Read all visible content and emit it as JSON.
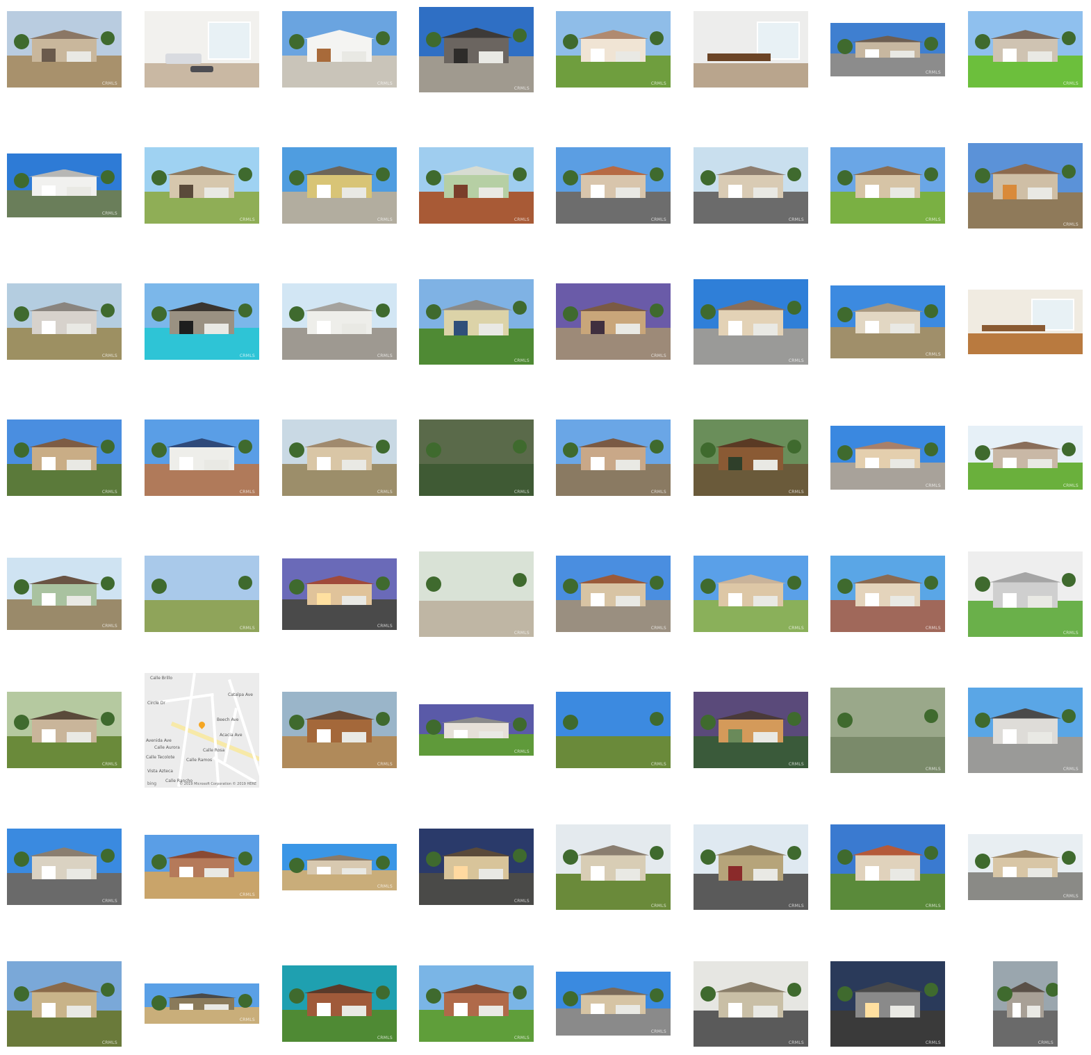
{
  "gallery": {
    "columns": 8,
    "rows": 8,
    "watermark": "CRMLS",
    "photos": [
      {
        "kind": "house",
        "sky": "#b9cce0",
        "ground": "#a8916c",
        "wall": "#c9b79c",
        "roof": "#8b7765",
        "trim": "#6a5a4c"
      },
      {
        "kind": "living",
        "wall": "#f2f1ee",
        "floor": "#c9b8a3",
        "accent": "#4d4d52"
      },
      {
        "kind": "house",
        "sky": "#6aa4e0",
        "ground": "#c9c4b9",
        "wall": "#f4f4f2",
        "roof": "#f4f4f2",
        "trim": "#a86a3a"
      },
      {
        "kind": "house",
        "sky": "#2f6fc4",
        "ground": "#a09a8f",
        "wall": "#6b6560",
        "roof": "#3d3a38",
        "trim": "#2e2c2a"
      },
      {
        "kind": "house",
        "sky": "#8fbde8",
        "ground": "#6f9e3e",
        "wall": "#f0e4d4",
        "roof": "#b08a70",
        "trim": "#ffffff"
      },
      {
        "kind": "kitchen",
        "wall": "#ededec",
        "floor": "#b9a58d",
        "accent": "#6b4426"
      },
      {
        "kind": "house",
        "sky": "#3f7fd0",
        "ground": "#8c8c8c",
        "wall": "#c7b7a0",
        "roof": "#6d5e52",
        "trim": "#ffffff"
      },
      {
        "kind": "house",
        "sky": "#8fc0ee",
        "ground": "#6cbf3c",
        "wall": "#cfc3b2",
        "roof": "#7c6a5c",
        "trim": "#ffffff"
      },
      {
        "kind": "house",
        "sky": "#2e7bd6",
        "ground": "#6a7e5a",
        "wall": "#f1f1ef",
        "roof": "#b7b7b5",
        "trim": "#ffffff"
      },
      {
        "kind": "house",
        "sky": "#9fd2f2",
        "ground": "#8fae56",
        "wall": "#d6c7ad",
        "roof": "#8d7a61",
        "trim": "#5a4a3a"
      },
      {
        "kind": "house",
        "sky": "#4f9de0",
        "ground": "#b2ad9f",
        "wall": "#d8c476",
        "roof": "#6d6559",
        "trim": "#ffffff"
      },
      {
        "kind": "house",
        "sky": "#9fcdef",
        "ground": "#a85a36",
        "wall": "#b6cfa4",
        "roof": "#d7dcd2",
        "trim": "#7a3e2a"
      },
      {
        "kind": "house",
        "sky": "#5b9ee3",
        "ground": "#6d6d6d",
        "wall": "#d8c5ac",
        "roof": "#b66a44",
        "trim": "#ffffff"
      },
      {
        "kind": "house",
        "sky": "#c9dfee",
        "ground": "#6b6b6b",
        "wall": "#d9cbb4",
        "roof": "#8d7e70",
        "trim": "#ffffff"
      },
      {
        "kind": "house",
        "sky": "#6aa6e6",
        "ground": "#7ab043",
        "wall": "#d6c4a6",
        "roof": "#8b6e52",
        "trim": "#ffffff"
      },
      {
        "kind": "house",
        "sky": "#5b92d8",
        "ground": "#8f7a5a",
        "wall": "#cfbfa6",
        "roof": "#8c6a4e",
        "trim": "#d98a3a"
      },
      {
        "kind": "house",
        "sky": "#b4cde0",
        "ground": "#9d9062",
        "wall": "#d7d2cc",
        "roof": "#8a857f",
        "trim": "#ffffff"
      },
      {
        "kind": "pool",
        "sky": "#7bb7ea",
        "ground": "#2ec4d6",
        "wall": "#9a9182",
        "roof": "#3a3530",
        "trim": "#1e1e1e"
      },
      {
        "kind": "house",
        "sky": "#d2e6f4",
        "ground": "#9e9991",
        "wall": "#eeeeea",
        "roof": "#a5a39e",
        "trim": "#ffffff"
      },
      {
        "kind": "house",
        "sky": "#7fb2e4",
        "ground": "#4f8a34",
        "wall": "#dcd3a8",
        "roof": "#8a8a88",
        "trim": "#2f4f7a"
      },
      {
        "kind": "house",
        "sky": "#6a5ba8",
        "ground": "#9d8a78",
        "wall": "#c9a67a",
        "roof": "#7a5a44",
        "trim": "#3f2f3f"
      },
      {
        "kind": "house",
        "sky": "#2f7fd8",
        "ground": "#9a9a98",
        "wall": "#e3d2b6",
        "roof": "#8a6e58",
        "trim": "#ffffff"
      },
      {
        "kind": "house",
        "sky": "#3c8ae0",
        "ground": "#a08f6a",
        "wall": "#e2d7c3",
        "roof": "#a89880",
        "trim": "#ffffff"
      },
      {
        "kind": "hall",
        "wall": "#f0ebe1",
        "floor": "#b97a3f",
        "accent": "#8a5a32"
      },
      {
        "kind": "house",
        "sky": "#4a8ee0",
        "ground": "#5b7a3a",
        "wall": "#c9ad86",
        "roof": "#7d5c44",
        "trim": "#ffffff"
      },
      {
        "kind": "house",
        "sky": "#5a9ee6",
        "ground": "#b07a5a",
        "wall": "#eeeeea",
        "roof": "#2f4a7a",
        "trim": "#ffffff"
      },
      {
        "kind": "house",
        "sky": "#c9d9e4",
        "ground": "#9c8e6a",
        "wall": "#d9c6a6",
        "roof": "#a08a6e",
        "trim": "#ffffff"
      },
      {
        "kind": "aerial",
        "sky": "#5a6a4a",
        "ground": "#3f5a34",
        "wall": "#b07a5a",
        "roof": "#8a5a44",
        "trim": "#2ec4d6"
      },
      {
        "kind": "house",
        "sky": "#6aa6e6",
        "ground": "#8a7a62",
        "wall": "#c9a888",
        "roof": "#7a5a44",
        "trim": "#ffffff"
      },
      {
        "kind": "house",
        "sky": "#6a8e5a",
        "ground": "#6a5a3a",
        "wall": "#8a5a34",
        "roof": "#5a3a24",
        "trim": "#2f3f2a"
      },
      {
        "kind": "house",
        "sky": "#3a88e0",
        "ground": "#a8a29a",
        "wall": "#e4cfae",
        "roof": "#a8806a",
        "trim": "#ffffff"
      },
      {
        "kind": "house",
        "sky": "#e6f0f7",
        "ground": "#6ab03c",
        "wall": "#c9b8a6",
        "roof": "#8a6e5a",
        "trim": "#ffffff"
      },
      {
        "kind": "house",
        "sky": "#cfe3f2",
        "ground": "#9a8a6a",
        "wall": "#a9c2a0",
        "roof": "#6a5444",
        "trim": "#ffffff"
      },
      {
        "kind": "field",
        "sky": "#a9c9ea",
        "ground": "#8fa45a",
        "wall": "#8fa45a",
        "roof": "#4f6a3a",
        "trim": "#4f6a3a"
      },
      {
        "kind": "house",
        "sky": "#6a6ab8",
        "ground": "#4a4a4a",
        "wall": "#e0c39a",
        "roof": "#a04a3a",
        "trim": "#ffe0a0"
      },
      {
        "kind": "forest",
        "sky": "#d9e2d6",
        "ground": "#bfb6a4",
        "wall": "#5a4a3a",
        "roof": "#3a5a2a",
        "trim": "#2a3a24"
      },
      {
        "kind": "house",
        "sky": "#4a8ee0",
        "ground": "#9a8f80",
        "wall": "#d8c4a4",
        "roof": "#9a5a3a",
        "trim": "#ffffff"
      },
      {
        "kind": "house",
        "sky": "#5aa0e8",
        "ground": "#8ab05a",
        "wall": "#ddc7a6",
        "roof": "#c9b39a",
        "trim": "#ffffff"
      },
      {
        "kind": "house",
        "sky": "#5aa6e6",
        "ground": "#a0685a",
        "wall": "#e4d4bc",
        "roof": "#8a6a52",
        "trim": "#ffffff"
      },
      {
        "kind": "house",
        "sky": "#eeeeee",
        "ground": "#6ab04a",
        "wall": "#cfcfcf",
        "roof": "#a5a5a5",
        "trim": "#ffffff"
      },
      {
        "kind": "house",
        "sky": "#b5c9a0",
        "ground": "#6a8a3a",
        "wall": "#c9b59a",
        "roof": "#5a4a3a",
        "trim": "#ffffff"
      },
      {
        "kind": "map",
        "streets": [
          "Calle Brillo",
          "Circle Dr",
          "Catalpa Ave",
          "Beech Ave",
          "Acacia Ave",
          "Avenida Ave",
          "Calle Aurora",
          "Calle Tecolote",
          "Vista Azteca",
          "Calle Rancho",
          "Calle Rosa",
          "Calle Ramos"
        ],
        "credit": "© 2019 Microsoft Corporation © 2019 HERE",
        "provider": "bing"
      },
      {
        "kind": "house",
        "sky": "#9ab5c9",
        "ground": "#b08a5a",
        "wall": "#a4683a",
        "roof": "#6a4a34",
        "trim": "#ffffff"
      },
      {
        "kind": "house",
        "sky": "#5a5aa8",
        "ground": "#5f9a3a",
        "wall": "#e6e0d8",
        "roof": "#8a8a8a",
        "trim": "#ffffff"
      },
      {
        "kind": "valley",
        "sky": "#3c8ae0",
        "ground": "#6a8a3a",
        "wall": "#9a8a6a",
        "roof": "#6a6a5a",
        "trim": "#ffffff"
      },
      {
        "kind": "pond",
        "sky": "#5a4a7a",
        "ground": "#3a5a3a",
        "wall": "#d49a5a",
        "roof": "#4a3a3a",
        "trim": "#6a8a5a"
      },
      {
        "kind": "aerial",
        "sky": "#9aa88a",
        "ground": "#7a8a6a",
        "wall": "#c9c0a8",
        "roof": "#c94a5a",
        "trim": "#e8e4d8"
      },
      {
        "kind": "house",
        "sky": "#5aa6e6",
        "ground": "#9a9a98",
        "wall": "#dedcd8",
        "roof": "#4a4a4a",
        "trim": "#ffffff"
      },
      {
        "kind": "house",
        "sky": "#3a8ae0",
        "ground": "#6a6a6a",
        "wall": "#dad2c2",
        "roof": "#8a7e70",
        "trim": "#ffffff"
      },
      {
        "kind": "house",
        "sky": "#5a9ee6",
        "ground": "#c9a46a",
        "wall": "#b57a5a",
        "roof": "#8a4a34",
        "trim": "#ffffff"
      },
      {
        "kind": "house",
        "sky": "#3a96e6",
        "ground": "#c9ad7a",
        "wall": "#d8c9b0",
        "roof": "#8a7a68",
        "trim": "#ffffff"
      },
      {
        "kind": "house",
        "sky": "#2a3a6a",
        "ground": "#4a4a48",
        "wall": "#d8c49a",
        "roof": "#5a4a3a",
        "trim": "#ffd9a0"
      },
      {
        "kind": "house",
        "sky": "#e4eaee",
        "ground": "#6a8a3a",
        "wall": "#d8cdb5",
        "roof": "#8a7e70",
        "trim": "#ffffff"
      },
      {
        "kind": "house",
        "sky": "#dfe9f1",
        "ground": "#5a5a5a",
        "wall": "#b6a47a",
        "roof": "#8a7a5a",
        "trim": "#8a2a2a"
      },
      {
        "kind": "house",
        "sky": "#3a7ad0",
        "ground": "#5a8a3a",
        "wall": "#e0d2bc",
        "roof": "#b45a3a",
        "trim": "#ffffff"
      },
      {
        "kind": "house",
        "sky": "#e8eef2",
        "ground": "#8a8a86",
        "wall": "#d8c6a6",
        "roof": "#a08a6a",
        "trim": "#ffffff"
      },
      {
        "kind": "house",
        "sky": "#7aa8d8",
        "ground": "#6a7a3a",
        "wall": "#c9b48a",
        "roof": "#8a6a4a",
        "trim": "#ffffff"
      },
      {
        "kind": "house",
        "sky": "#5aa0e6",
        "ground": "#c9ae7a",
        "wall": "#8a7a5a",
        "roof": "#4a4a48",
        "trim": "#ffffff"
      },
      {
        "kind": "house",
        "sky": "#1fa0b0",
        "ground": "#4f8a34",
        "wall": "#a05a3a",
        "roof": "#5a3a2a",
        "trim": "#ffffff"
      },
      {
        "kind": "house",
        "sky": "#7ab5e6",
        "ground": "#5f9e3a",
        "wall": "#b06a4a",
        "roof": "#7a4a34",
        "trim": "#ffffff"
      },
      {
        "kind": "house",
        "sky": "#3a8ae0",
        "ground": "#8a8a8a",
        "wall": "#d6c4a4",
        "roof": "#7a6a5a",
        "trim": "#ffffff"
      },
      {
        "kind": "condo",
        "sky": "#e6e6e2",
        "ground": "#5a5a5a",
        "wall": "#c9bfa6",
        "roof": "#8a7e6a",
        "trim": "#ffffff"
      },
      {
        "kind": "house",
        "sky": "#2a3a5a",
        "ground": "#3a3a3a",
        "wall": "#8a8a8a",
        "roof": "#4a4a4a",
        "trim": "#ffe0a0"
      },
      {
        "kind": "house",
        "sky": "#9aa6ae",
        "ground": "#6a6a6a",
        "wall": "#a8a096",
        "roof": "#5a5048",
        "trim": "#ffffff"
      }
    ]
  }
}
